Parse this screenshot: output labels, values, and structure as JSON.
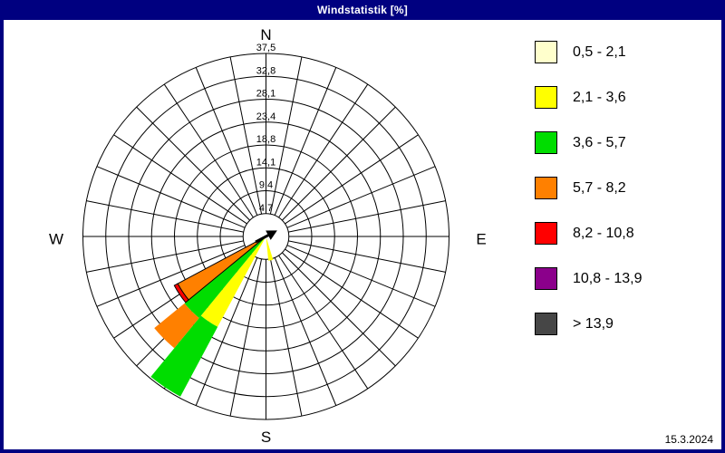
{
  "title_bar": {
    "title": "Windstatistik [%]"
  },
  "footer": {
    "date": "15.3.2024"
  },
  "colors": {
    "frame": "#000080",
    "titlebar_text": "#FFFFFF",
    "panel_background": "#FFFFFF",
    "grid_line": "#000000"
  },
  "chart_data": {
    "type": "bar",
    "variant": "wind-rose-polar-stacked",
    "title": "Windstatistik [%]",
    "units": "%",
    "sector_count": 32,
    "sector_width_deg": 11.25,
    "ring_count": 8,
    "radial_axis": {
      "tick_labels": [
        "4,7",
        "9,4",
        "14,1",
        "18,8",
        "23,4",
        "28,1",
        "32,8",
        "37,5"
      ],
      "tick_values": [
        4.7,
        9.4,
        14.1,
        18.8,
        23.4,
        28.1,
        32.8,
        37.5
      ],
      "max": 37.5
    },
    "compass_labels": {
      "n": "N",
      "e": "E",
      "s": "S",
      "w": "W"
    },
    "legend_position": "right",
    "speed_classes": [
      {
        "label": "0,5 - 2,1",
        "color": "#FFFFCC"
      },
      {
        "label": "2,1 - 3,6",
        "color": "#FFFF00"
      },
      {
        "label": "3,6 - 5,7",
        "color": "#00DD00"
      },
      {
        "label": "5,7 - 8,2",
        "color": "#FF8000"
      },
      {
        "label": "8,2 - 10,8",
        "color": "#FF0000"
      },
      {
        "label": "10,8 - 13,9",
        "color": "#8B008B"
      },
      {
        "label": "> 13,9",
        "color": "#464646"
      }
    ],
    "wedges": [
      {
        "bearing_deg": 168.75,
        "segments": [
          {
            "class": "2,1 - 3,6",
            "from": 0.5,
            "to": 5.0
          }
        ]
      },
      {
        "bearing_deg": 213.75,
        "segments": [
          {
            "class": "2,1 - 3,6",
            "from": 0.3,
            "to": 21.0
          },
          {
            "class": "3,6 - 5,7",
            "from": 21.0,
            "to": 37.2
          }
        ]
      },
      {
        "bearing_deg": 225,
        "segments": [
          {
            "class": "3,6 - 5,7",
            "from": 0.3,
            "to": 21.6
          },
          {
            "class": "5,7 - 8,2",
            "from": 21.6,
            "to": 29.6
          }
        ]
      },
      {
        "bearing_deg": 236.25,
        "outlined": true,
        "segments": [
          {
            "class": "5,7 - 8,2",
            "from": 0.3,
            "to": 20.5
          },
          {
            "class": "8,2 - 10,8",
            "from": 20.5,
            "to": 21.3
          }
        ]
      }
    ],
    "center_arrow": {
      "bearing_deg": 62,
      "color": "#000000"
    }
  }
}
